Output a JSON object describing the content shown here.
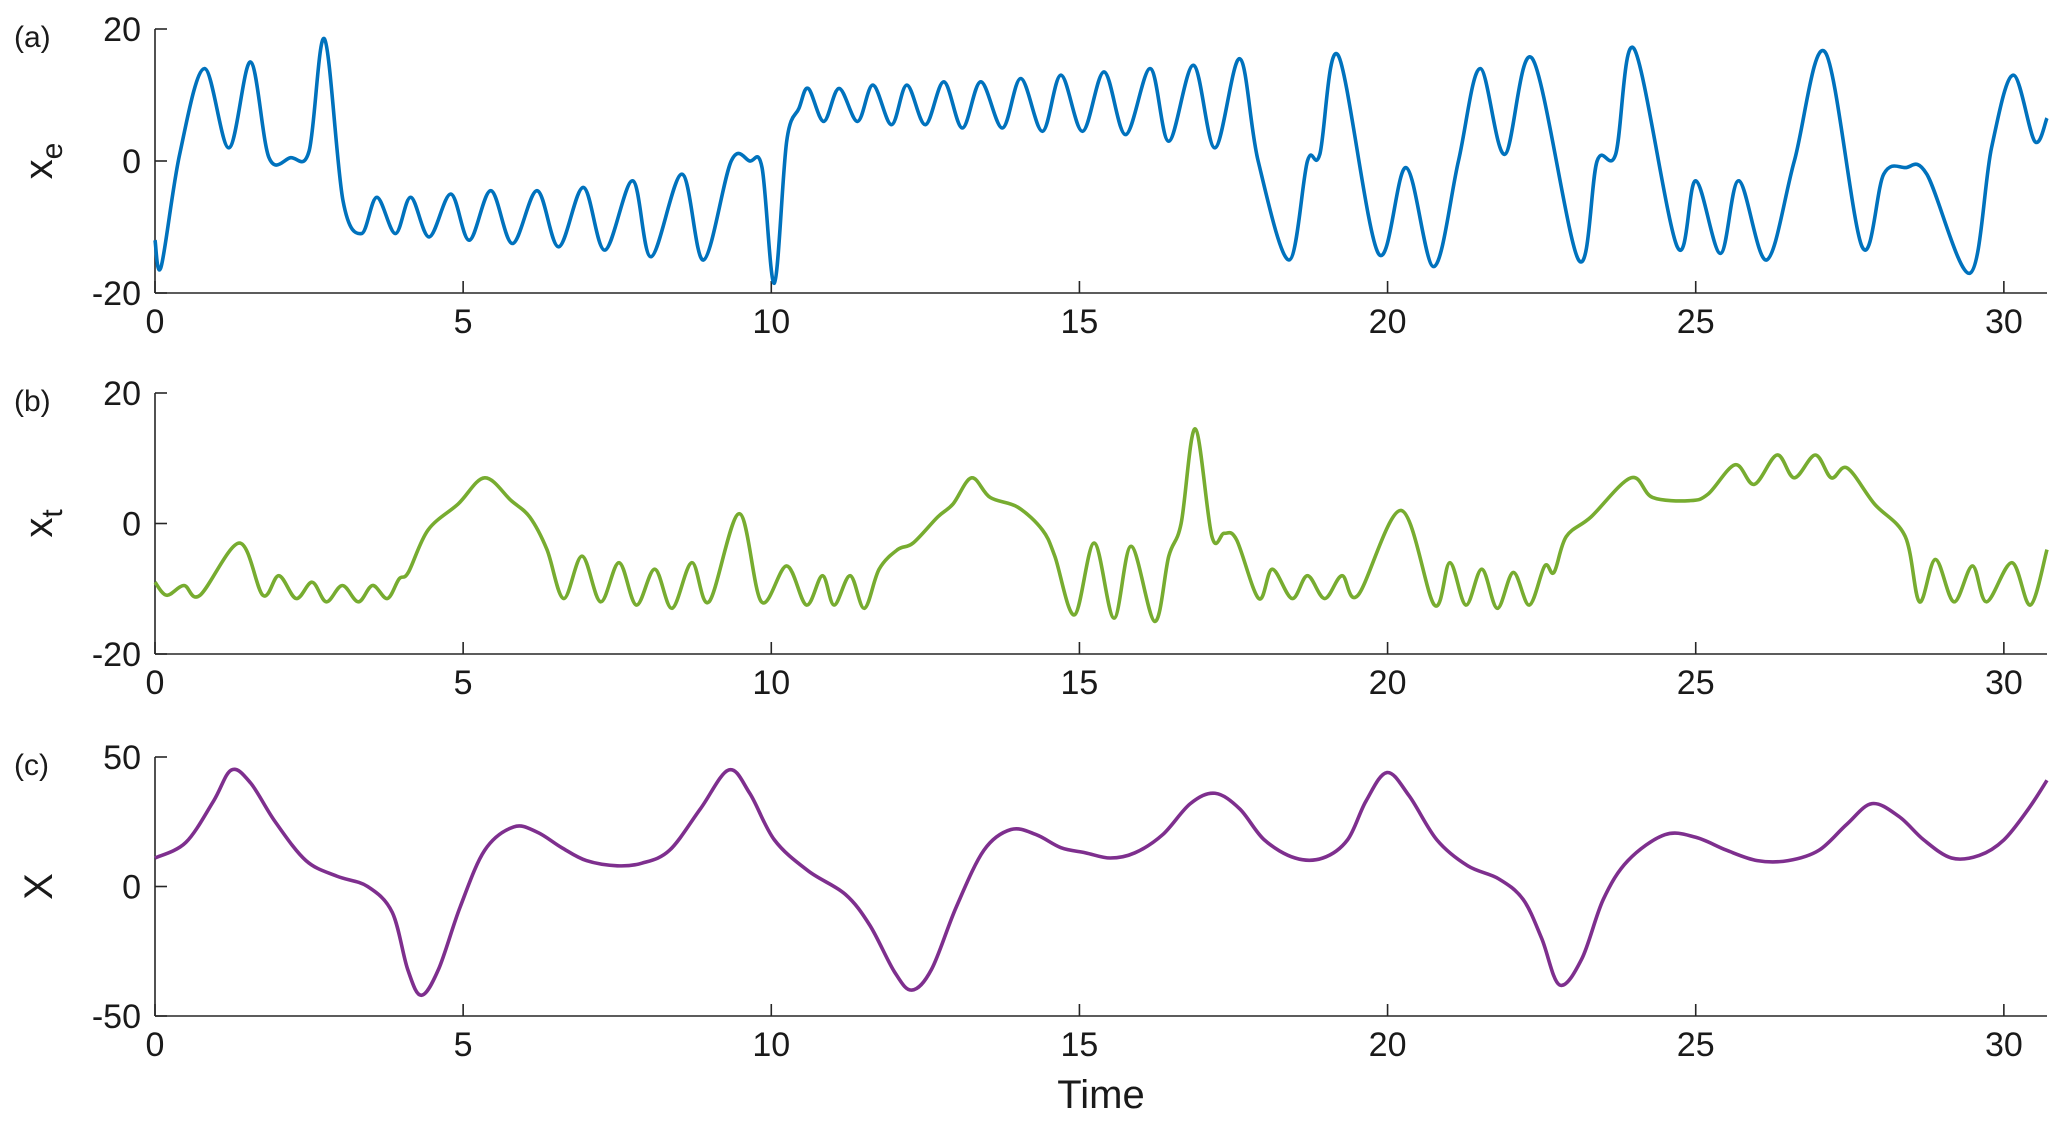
{
  "chart_data": [
    {
      "type": "line",
      "panel_label": "(a)",
      "ylabel": "x",
      "ylabel_subscript": "e",
      "color": "#0072BD",
      "xlim": [
        0,
        30.7
      ],
      "xticks": [
        0,
        5,
        10,
        15,
        20,
        25,
        30
      ],
      "ylim": [
        -20,
        20
      ],
      "yticks": [
        -20,
        0,
        20
      ],
      "x": [
        0,
        0.1,
        0.4,
        0.8,
        1.2,
        1.55,
        1.85,
        2.2,
        2.5,
        2.75,
        3.05,
        3.35,
        3.6,
        3.9,
        4.15,
        4.45,
        4.8,
        5.1,
        5.45,
        5.8,
        6.2,
        6.55,
        6.95,
        7.3,
        7.75,
        8.05,
        8.55,
        8.9,
        9.35,
        9.65,
        9.85,
        10.05,
        10.25,
        10.45,
        10.6,
        10.85,
        11.1,
        11.4,
        11.65,
        11.95,
        12.2,
        12.5,
        12.8,
        13.1,
        13.4,
        13.75,
        14.05,
        14.4,
        14.7,
        15.05,
        15.4,
        15.75,
        16.15,
        16.45,
        16.85,
        17.2,
        17.6,
        17.9,
        18.4,
        18.7,
        18.9,
        19.2,
        19.85,
        20.3,
        20.75,
        21.15,
        21.5,
        21.9,
        22.35,
        23.1,
        23.4,
        23.7,
        24.0,
        24.7,
        25.0,
        25.4,
        25.7,
        26.15,
        26.6,
        27.1,
        27.7,
        28.05,
        28.4,
        28.75,
        29.45,
        29.8,
        30.15,
        30.5,
        30.7
      ],
      "values": [
        -12,
        -16,
        1,
        14,
        2,
        15,
        0.5,
        0.5,
        1.5,
        18.5,
        -6,
        -11,
        -5.5,
        -11,
        -5.5,
        -11.5,
        -5,
        -12,
        -4.5,
        -12.5,
        -4.5,
        -13,
        -4,
        -13.5,
        -3,
        -14.5,
        -2,
        -15,
        0,
        0,
        -1,
        -18.5,
        3,
        8,
        11,
        6,
        11,
        6,
        11.5,
        5.5,
        11.5,
        5.5,
        12,
        5,
        12,
        5,
        12.5,
        4.5,
        13,
        4.5,
        13.5,
        4,
        14,
        3,
        14.5,
        2,
        15.5,
        0,
        -15,
        0,
        1,
        16,
        -14,
        -1,
        -16,
        0,
        14,
        1,
        15.5,
        -15,
        0,
        1,
        17,
        -13,
        -3,
        -14,
        -3,
        -15,
        0,
        16.5,
        -13,
        -2,
        -1,
        -2,
        -17,
        2,
        13,
        3,
        6.5
      ]
    },
    {
      "type": "line",
      "panel_label": "(b)",
      "ylabel": "x",
      "ylabel_subscript": "t",
      "color": "#77AC30",
      "xlim": [
        0,
        30.7
      ],
      "xticks": [
        0,
        5,
        10,
        15,
        20,
        25,
        30
      ],
      "ylim": [
        -20,
        20
      ],
      "yticks": [
        -20,
        0,
        20
      ],
      "x": [
        0,
        0.19,
        0.47,
        0.73,
        1.37,
        1.75,
        2.01,
        2.29,
        2.55,
        2.78,
        3.04,
        3.3,
        3.53,
        3.77,
        3.96,
        4.11,
        4.43,
        4.92,
        5.35,
        5.78,
        6.08,
        6.36,
        6.63,
        6.93,
        7.23,
        7.53,
        7.81,
        8.11,
        8.39,
        8.71,
        8.99,
        9.48,
        9.84,
        10.25,
        10.57,
        10.83,
        11.02,
        11.28,
        11.51,
        11.75,
        12.05,
        12.3,
        12.7,
        12.95,
        13.25,
        13.55,
        14.0,
        14.4,
        14.6,
        14.92,
        15.24,
        15.56,
        15.84,
        16.22,
        16.45,
        16.65,
        16.88,
        17.15,
        17.35,
        17.55,
        17.91,
        18.13,
        18.45,
        18.7,
        18.98,
        19.26,
        19.52,
        20.22,
        20.76,
        21.01,
        21.27,
        21.53,
        21.78,
        22.04,
        22.3,
        22.55,
        22.7,
        22.9,
        23.3,
        23.95,
        24.3,
        24.9,
        25.2,
        25.64,
        25.95,
        26.32,
        26.6,
        26.94,
        27.2,
        27.46,
        27.9,
        28.4,
        28.63,
        28.89,
        29.19,
        29.49,
        29.72,
        30.13,
        30.43,
        30.7
      ],
      "values": [
        -9,
        -11,
        -9.5,
        -11,
        -3,
        -11,
        -8,
        -11.5,
        -9,
        -12,
        -9.5,
        -12,
        -9.5,
        -11.5,
        -8.5,
        -7.5,
        -1,
        3,
        7,
        3.5,
        1,
        -4,
        -11.5,
        -5,
        -12,
        -6,
        -12.5,
        -7,
        -13,
        -6,
        -12,
        1.5,
        -12,
        -6.5,
        -12.5,
        -8,
        -12.5,
        -8,
        -13,
        -7,
        -4,
        -3,
        1,
        3,
        7,
        4,
        2.5,
        -1,
        -5,
        -14,
        -3,
        -14.5,
        -3.5,
        -15,
        -5,
        0,
        14.5,
        -2,
        -1.5,
        -2.5,
        -11.5,
        -7,
        -11.5,
        -8,
        -11.5,
        -8,
        -11,
        2,
        -12.5,
        -6,
        -12.5,
        -7,
        -13,
        -7.5,
        -12.5,
        -6.5,
        -7.5,
        -2,
        1,
        7,
        4,
        3.5,
        4.5,
        9,
        6,
        10.5,
        7,
        10.5,
        7,
        8.5,
        3,
        -2,
        -12,
        -5.5,
        -12,
        -6.5,
        -12,
        -6,
        -12.5,
        -4
      ]
    },
    {
      "type": "line",
      "panel_label": "(c)",
      "ylabel": "X",
      "xlabel": "Time",
      "color": "#7E2F8E",
      "xlim": [
        0,
        30.7
      ],
      "xticks": [
        0,
        5,
        10,
        15,
        20,
        25,
        30
      ],
      "ylim": [
        -50,
        50
      ],
      "yticks": [
        -50,
        0,
        50
      ],
      "x": [
        0,
        0.5,
        0.95,
        1.24,
        1.55,
        1.95,
        2.45,
        2.95,
        3.45,
        3.85,
        4.1,
        4.32,
        4.6,
        4.95,
        5.35,
        5.82,
        6.2,
        6.6,
        7.0,
        7.5,
        7.9,
        8.35,
        8.85,
        9.31,
        9.65,
        10.05,
        10.6,
        11.2,
        11.6,
        12.0,
        12.28,
        12.6,
        13.0,
        13.45,
        13.89,
        14.3,
        14.7,
        15.1,
        15.5,
        15.9,
        16.35,
        16.8,
        17.2,
        17.6,
        18.0,
        18.5,
        18.95,
        19.35,
        19.65,
        19.99,
        20.35,
        20.8,
        21.3,
        21.8,
        22.2,
        22.5,
        22.79,
        23.15,
        23.5,
        23.9,
        24.5,
        25.0,
        25.5,
        26.0,
        26.5,
        27.0,
        27.45,
        27.86,
        28.3,
        28.7,
        29.15,
        29.6,
        30.0,
        30.4,
        30.7
      ],
      "values": [
        11,
        17,
        33,
        45,
        40,
        25,
        10,
        4,
        0,
        -10,
        -32,
        -42,
        -32,
        -8,
        14,
        23,
        21,
        15,
        10,
        8,
        9,
        14,
        30,
        45,
        36,
        18,
        6,
        -3,
        -15,
        -33,
        -40,
        -32,
        -8,
        14,
        22,
        20,
        15,
        13,
        11,
        13,
        20,
        32,
        36,
        30,
        18,
        11,
        11,
        18,
        33,
        44,
        35,
        18,
        8,
        3,
        -5,
        -20,
        -38,
        -28,
        -5,
        10,
        20,
        19,
        14,
        10,
        10,
        14,
        24,
        32,
        27,
        18,
        11,
        12,
        18,
        30,
        41
      ]
    }
  ]
}
